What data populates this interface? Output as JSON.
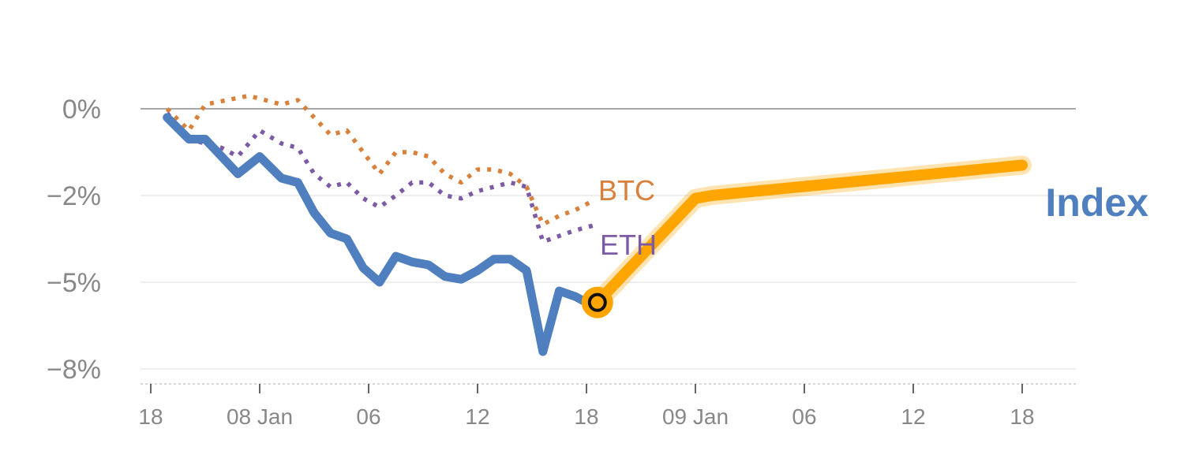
{
  "chart_data": {
    "type": "line",
    "title": "",
    "xlabel": "",
    "ylabel": "",
    "ylim": [
      -8,
      0
    ],
    "y_ticks": [
      {
        "value": 0,
        "label": "0%"
      },
      {
        "value": -2,
        "label": "−2%"
      },
      {
        "value": -5,
        "label": "−5%"
      },
      {
        "value": -8,
        "label": "−8%"
      }
    ],
    "x_ticks": [
      {
        "x": 0,
        "label": "18"
      },
      {
        "x": 10,
        "label": "08 Jan"
      },
      {
        "x": 20,
        "label": "06"
      },
      {
        "x": 30,
        "label": "12"
      },
      {
        "x": 40,
        "label": "18"
      },
      {
        "x": 50,
        "label": "09 Jan"
      },
      {
        "x": 60,
        "label": "06"
      },
      {
        "x": 70,
        "label": "12"
      },
      {
        "x": 80,
        "label": "18"
      }
    ],
    "grid": true,
    "series": [
      {
        "name": "Index",
        "color": "#4f7fbe",
        "style": "solid",
        "x": [
          1.5,
          3.5,
          5,
          6.5,
          8,
          10,
          12,
          13.5,
          15,
          16.5,
          18,
          19.5,
          21,
          22.5,
          24,
          25.5,
          27,
          28.5,
          30,
          31.5,
          33,
          34.5,
          36,
          37.5,
          39,
          40,
          41
        ],
        "y": [
          -0.2,
          -0.7,
          -0.7,
          -1.1,
          -1.5,
          -1.1,
          -1.6,
          -1.7,
          -2.6,
          -3.3,
          -3.5,
          -4.5,
          -5.0,
          -4.1,
          -4.3,
          -4.4,
          -4.8,
          -4.9,
          -4.6,
          -4.2,
          -4.2,
          -4.6,
          -7.4,
          -5.3,
          -5.5,
          -5.7,
          -5.6
        ]
      },
      {
        "name": "BTC",
        "color": "#d9803a",
        "style": "dotted",
        "x": [
          1.5,
          3.5,
          5,
          7,
          9,
          10.5,
          12,
          13.5,
          15,
          16.5,
          18,
          19.5,
          21,
          22.5,
          24,
          25.5,
          27,
          28.5,
          30,
          31.5,
          33,
          34.5,
          36,
          37.5,
          39,
          40.5
        ],
        "y": [
          0.0,
          -0.5,
          0.1,
          0.2,
          0.3,
          0.2,
          0.1,
          0.2,
          -0.2,
          -0.6,
          -0.5,
          -1.0,
          -1.5,
          -1.0,
          -1.0,
          -1.1,
          -1.5,
          -1.7,
          -1.4,
          -1.4,
          -1.5,
          -1.8,
          -3.0,
          -2.7,
          -2.5,
          -2.2
        ]
      },
      {
        "name": "ETH",
        "color": "#7b5aa6",
        "style": "dotted",
        "x": [
          1.5,
          3.5,
          5,
          6.5,
          8,
          10,
          12,
          13.5,
          15,
          16.5,
          18,
          19.5,
          21,
          22.5,
          24,
          25.5,
          27,
          28.5,
          30,
          31.5,
          33,
          34.5,
          36,
          37.5,
          39,
          41
        ],
        "y": [
          -0.1,
          -0.7,
          -0.8,
          -0.9,
          -1.1,
          -0.5,
          -0.8,
          -0.9,
          -1.5,
          -1.8,
          -1.7,
          -2.1,
          -2.4,
          -2.0,
          -1.7,
          -1.7,
          -2.0,
          -2.1,
          -1.9,
          -1.8,
          -1.7,
          -1.8,
          -3.6,
          -3.4,
          -3.2,
          -3.0
        ]
      },
      {
        "name": "",
        "color": "#ffa500",
        "style": "highlight",
        "x": [
          41,
          50,
          51.5,
          80
        ],
        "y": [
          -5.7,
          -2.1,
          -2.0,
          -1.3
        ]
      }
    ],
    "series_labels": [
      {
        "series": "BTC",
        "text": "BTC",
        "color": "#d9803a"
      },
      {
        "series": "ETH",
        "text": "ETH",
        "color": "#7b5aa6"
      },
      {
        "series": "Index",
        "text": "Index",
        "color": "#4f7fbe"
      }
    ],
    "marker": {
      "x": 41,
      "y": -5.7,
      "color": "#ffa500"
    }
  }
}
